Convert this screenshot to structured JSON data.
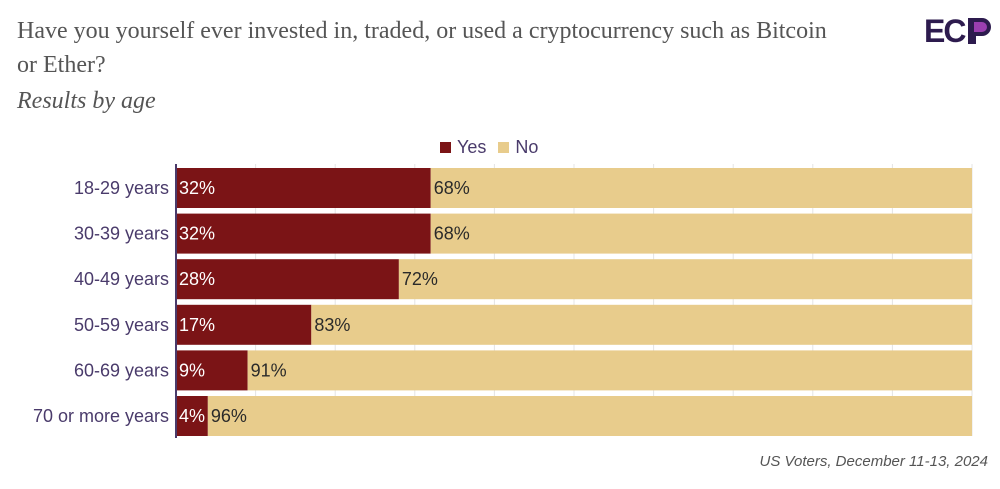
{
  "title": "Have you yourself ever invested in, traded, or used a cryptocurrency such as Bitcoin or Ether?",
  "subtitle": "Results by age",
  "logo_text": "ECP",
  "source": "US Voters, December 11-13, 2024",
  "colors": {
    "yes": "#7b1416",
    "no": "#e8cc8c",
    "label": "#4a3b6b"
  },
  "chart_data": {
    "type": "bar",
    "orientation": "horizontal",
    "stacked": true,
    "categories": [
      "18-29 years",
      "30-39 years",
      "40-49 years",
      "50-59 years",
      "60-69 years",
      "70 or more years"
    ],
    "series": [
      {
        "name": "Yes",
        "values": [
          32,
          32,
          28,
          17,
          9,
          4
        ]
      },
      {
        "name": "No",
        "values": [
          68,
          68,
          72,
          83,
          91,
          96
        ]
      }
    ],
    "xlim": [
      0,
      100
    ],
    "grid": true,
    "legend": "top-center",
    "value_suffix": "%"
  }
}
